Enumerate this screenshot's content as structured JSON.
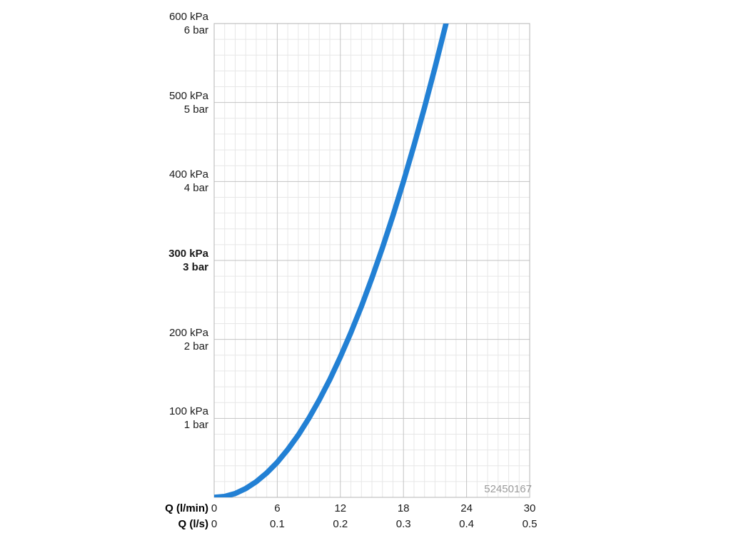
{
  "watermark": "52450167",
  "colors": {
    "curve": "#2280d4",
    "grid_minor": "#e7e7e7",
    "grid_major": "#c3c3c3",
    "border": "#b5b5b5",
    "label": "#1a1a1a",
    "watermark": "#9b9b9b"
  },
  "chart_data": {
    "type": "line",
    "title": "",
    "xlabel_rows": [
      {
        "label": "Q (l/min)",
        "ticks": [
          "0",
          "6",
          "12",
          "18",
          "24",
          "30"
        ],
        "values": [
          0,
          6,
          12,
          18,
          24,
          30
        ]
      },
      {
        "label": "Q (l/s)",
        "ticks": [
          "0",
          "0.1",
          "0.2",
          "0.3",
          "0.4",
          "0.5"
        ],
        "values": [
          0,
          6,
          12,
          18,
          24,
          30
        ]
      }
    ],
    "x_range_lmin": [
      0,
      30
    ],
    "y_range_kpa": [
      0,
      600
    ],
    "y_ticks": [
      {
        "kpa": "600 kPa",
        "bar": "6 bar",
        "value": 600,
        "bold": false
      },
      {
        "kpa": "500 kPa",
        "bar": "5 bar",
        "value": 500,
        "bold": false
      },
      {
        "kpa": "400 kPa",
        "bar": "4 bar",
        "value": 400,
        "bold": false
      },
      {
        "kpa": "300 kPa",
        "bar": "3 bar",
        "value": 300,
        "bold": true
      },
      {
        "kpa": "200 kPa",
        "bar": "2 bar",
        "value": 200,
        "bold": false
      },
      {
        "kpa": "100 kPa",
        "bar": "1 bar",
        "value": 100,
        "bold": false
      }
    ],
    "grid": {
      "x_minor_step_lmin": 1,
      "x_major_step_lmin": 6,
      "y_minor_step_kpa": 20,
      "y_major_step_kpa": 100,
      "grid_on": true
    },
    "series": [
      {
        "name": "flow-pressure-curve",
        "points_q_lmin_kpa": [
          [
            0,
            0
          ],
          [
            1,
            1.2
          ],
          [
            2,
            4.9
          ],
          [
            3,
            11.1
          ],
          [
            4,
            19.8
          ],
          [
            5,
            30.9
          ],
          [
            6,
            44.4
          ],
          [
            7,
            60.5
          ],
          [
            8,
            79.0
          ],
          [
            9,
            100.0
          ],
          [
            10,
            123.5
          ],
          [
            11,
            149.4
          ],
          [
            12,
            177.8
          ],
          [
            13,
            208.6
          ],
          [
            14,
            241.9
          ],
          [
            15,
            277.8
          ],
          [
            16,
            316.0
          ],
          [
            17,
            356.8
          ],
          [
            18,
            400.0
          ],
          [
            19,
            445.7
          ],
          [
            20,
            493.8
          ],
          [
            21,
            544.4
          ],
          [
            22,
            597.5
          ],
          [
            22.3,
            614.0
          ]
        ]
      }
    ]
  }
}
